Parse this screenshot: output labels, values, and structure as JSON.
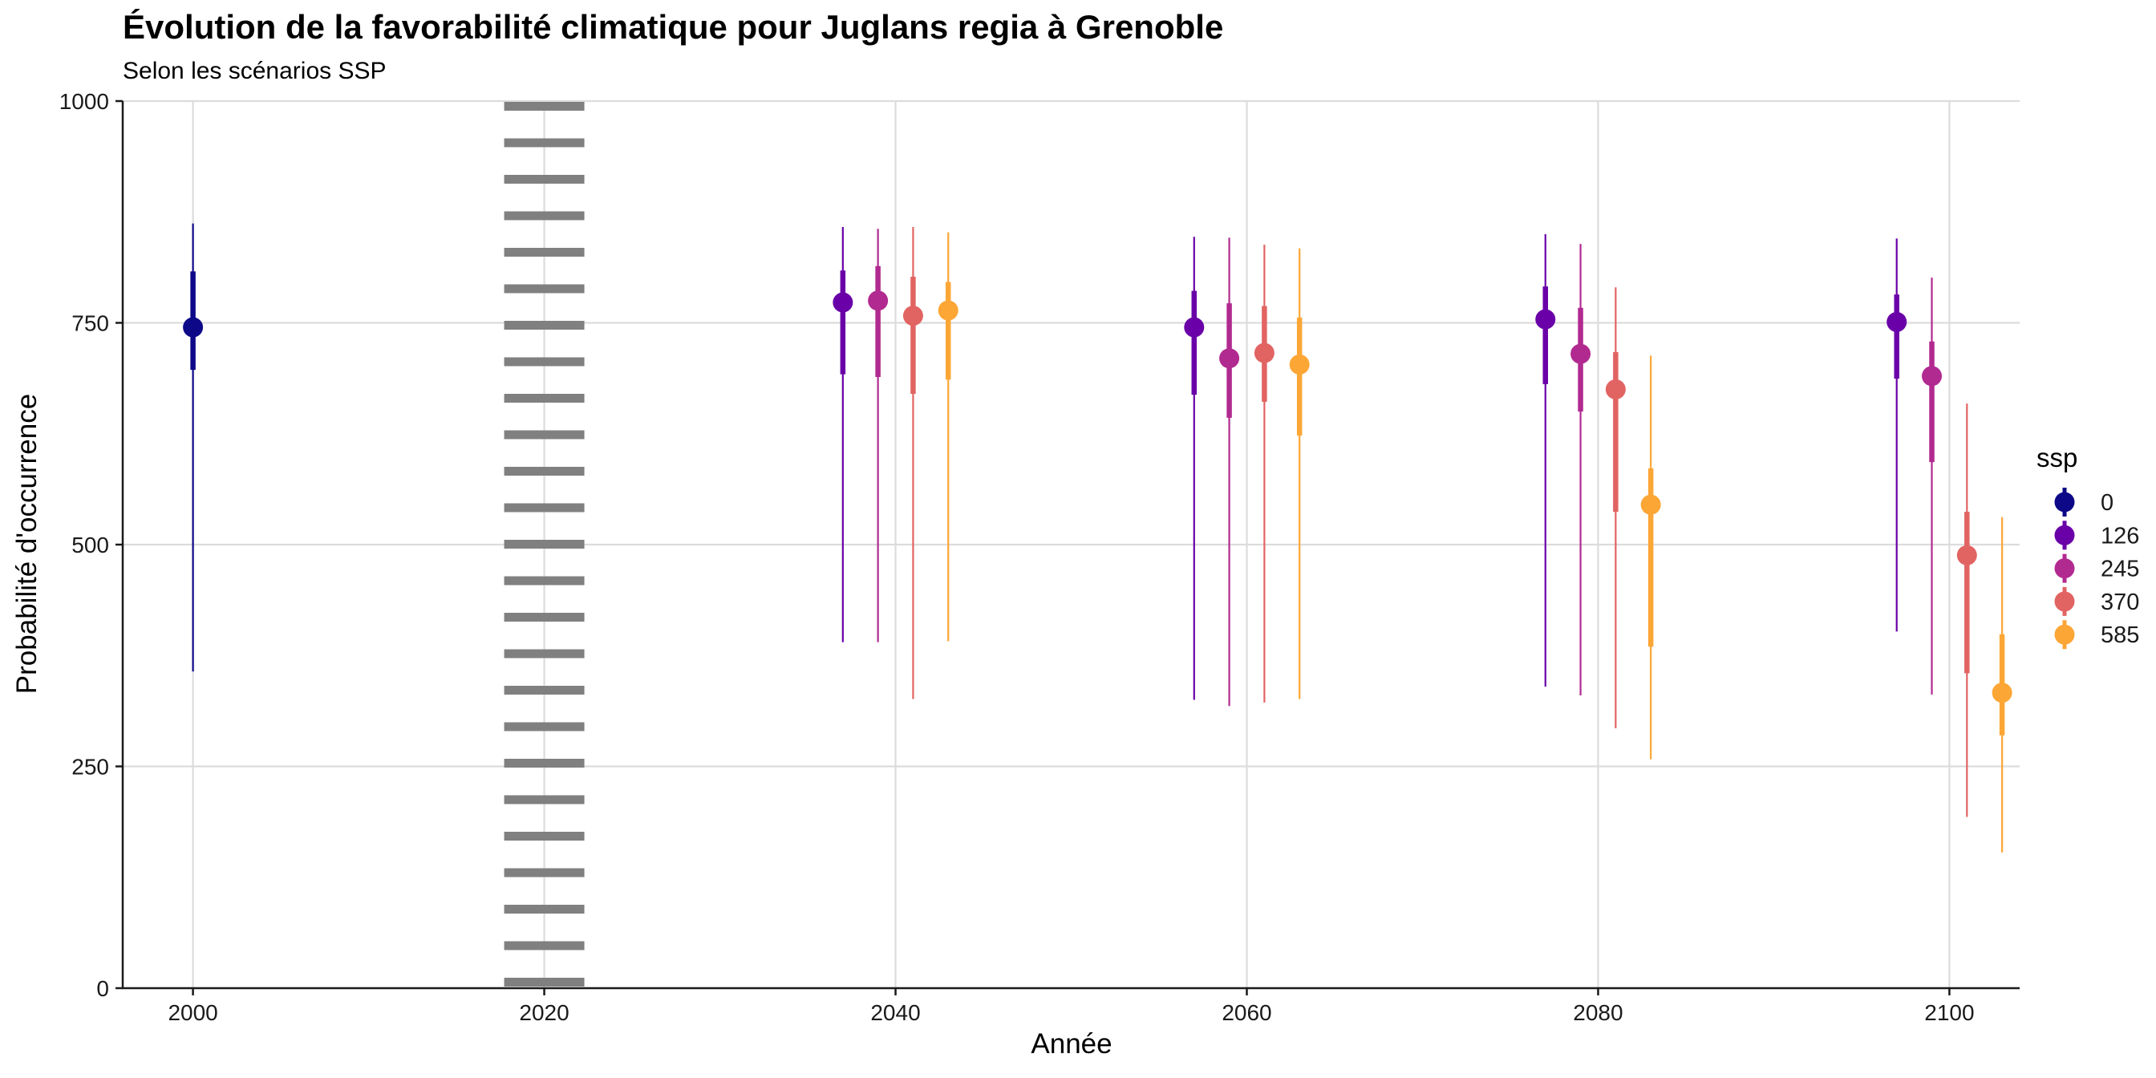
{
  "chart_data": {
    "type": "pointrange",
    "title": "Évolution de la favorabilité climatique pour Juglans regia à Grenoble",
    "subtitle": "Selon les scénarios SSP",
    "xlabel": "Année",
    "ylabel": "Probabilité d'occurrence",
    "xlim": [
      1996,
      2104
    ],
    "ylim": [
      0,
      1000
    ],
    "x_ticks": [
      2000,
      2020,
      2040,
      2060,
      2080,
      2100
    ],
    "y_ticks": [
      0,
      250,
      500,
      750,
      1000
    ],
    "grid": true,
    "reference_line": {
      "x": 2020,
      "style": "dotted"
    },
    "legend": {
      "title": "ssp",
      "placement": "right"
    },
    "series": [
      {
        "name": "0",
        "color": "#0D0887",
        "points": [
          {
            "x": 2000,
            "y": 745,
            "inner": [
              697,
              808
            ],
            "outer": [
              357,
              862
            ]
          }
        ]
      },
      {
        "name": "126",
        "color": "#6A00A8",
        "points": [
          {
            "x": 2037,
            "y": 773,
            "inner": [
              692,
              809
            ],
            "outer": [
              390,
              858
            ]
          },
          {
            "x": 2057,
            "y": 745,
            "inner": [
              669,
              786
            ],
            "outer": [
              325,
              847
            ]
          },
          {
            "x": 2077,
            "y": 754,
            "inner": [
              681,
              791
            ],
            "outer": [
              340,
              850
            ]
          },
          {
            "x": 2097,
            "y": 751,
            "inner": [
              687,
              782
            ],
            "outer": [
              402,
              845
            ]
          }
        ]
      },
      {
        "name": "245",
        "color": "#B12A90",
        "points": [
          {
            "x": 2039,
            "y": 775,
            "inner": [
              689,
              814
            ],
            "outer": [
              390,
              856
            ]
          },
          {
            "x": 2059,
            "y": 710,
            "inner": [
              643,
              772
            ],
            "outer": [
              318,
              846
            ]
          },
          {
            "x": 2079,
            "y": 715,
            "inner": [
              650,
              767
            ],
            "outer": [
              330,
              839
            ]
          },
          {
            "x": 2099,
            "y": 690,
            "inner": [
              593,
              729
            ],
            "outer": [
              331,
              801
            ]
          }
        ]
      },
      {
        "name": "370",
        "color": "#E16462",
        "points": [
          {
            "x": 2041,
            "y": 758,
            "inner": [
              670,
              802
            ],
            "outer": [
              326,
              858
            ]
          },
          {
            "x": 2061,
            "y": 716,
            "inner": [
              661,
              769
            ],
            "outer": [
              322,
              838
            ]
          },
          {
            "x": 2081,
            "y": 675,
            "inner": [
              537,
              717
            ],
            "outer": [
              293,
              790
            ]
          },
          {
            "x": 2101,
            "y": 488,
            "inner": [
              355,
              537
            ],
            "outer": [
              193,
              659
            ]
          }
        ]
      },
      {
        "name": "585",
        "color": "#FCA636",
        "points": [
          {
            "x": 2043,
            "y": 764,
            "inner": [
              686,
              796
            ],
            "outer": [
              391,
              852
            ]
          },
          {
            "x": 2063,
            "y": 703,
            "inner": [
              623,
              756
            ],
            "outer": [
              326,
              834
            ]
          },
          {
            "x": 2083,
            "y": 545,
            "inner": [
              385,
              586
            ],
            "outer": [
              258,
              713
            ]
          },
          {
            "x": 2103,
            "y": 333,
            "inner": [
              285,
              399
            ],
            "outer": [
              153,
              531
            ]
          }
        ]
      }
    ]
  }
}
